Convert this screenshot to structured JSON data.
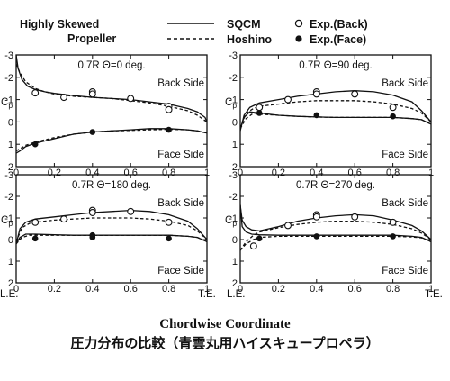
{
  "legend": {
    "subject_line1": "Highly Skewed",
    "subject_line2": "Propeller",
    "solid": "SQCM",
    "dashed": "Hoshino",
    "open_marker": "Exp.(Back)",
    "filled_marker": "Exp.(Face)"
  },
  "axes": {
    "ylabel_base": "C",
    "ylabel_sub": "p",
    "le_label": "L.E.",
    "te_label": "T.E."
  },
  "caption": {
    "line1": "Chordwise Coordinate",
    "line2": "圧力分布の比較（青雲丸用ハイスキュープロペラ）"
  },
  "chart_data": [
    {
      "type": "line",
      "label": "0.7R  Θ=0 deg.",
      "back_label": "Back Side",
      "face_label": "Face Side",
      "xlim": [
        0,
        1
      ],
      "ylim": [
        -3,
        2
      ],
      "xticks": [
        0,
        0.2,
        0.4,
        0.6,
        0.8,
        1
      ],
      "xtick_labels": [
        "0",
        "0.2",
        "0.4",
        "0.6",
        "0.8",
        "1"
      ],
      "yticks": [
        -3,
        -2,
        -1,
        0,
        1,
        2
      ],
      "ytick_labels": [
        "-3",
        "-2",
        "-1",
        "0",
        "1",
        "2"
      ],
      "sqcm_back": {
        "x": [
          0,
          0.01,
          0.03,
          0.06,
          0.1,
          0.15,
          0.2,
          0.3,
          0.4,
          0.5,
          0.6,
          0.7,
          0.8,
          0.9,
          0.95,
          0.99,
          1.0
        ],
        "y": [
          -3.0,
          -2.4,
          -1.9,
          -1.6,
          -1.45,
          -1.35,
          -1.28,
          -1.18,
          -1.1,
          -1.05,
          -1.0,
          -0.9,
          -0.8,
          -0.6,
          -0.45,
          -0.2,
          0
        ]
      },
      "sqcm_face": {
        "x": [
          0,
          0.02,
          0.05,
          0.1,
          0.15,
          0.2,
          0.3,
          0.4,
          0.5,
          0.6,
          0.7,
          0.8,
          0.9,
          0.95,
          1.0
        ],
        "y": [
          1.4,
          1.3,
          1.1,
          0.95,
          0.85,
          0.75,
          0.55,
          0.45,
          0.4,
          0.35,
          0.3,
          0.3,
          0.35,
          0.4,
          0.5
        ]
      },
      "hoshino_back": {
        "x": [
          0,
          0.02,
          0.05,
          0.1,
          0.15,
          0.2,
          0.3,
          0.4,
          0.5,
          0.6,
          0.7,
          0.8,
          0.9,
          0.95,
          1.0
        ],
        "y": [
          -2.6,
          -2.2,
          -1.8,
          -1.5,
          -1.35,
          -1.25,
          -1.15,
          -1.1,
          -1.05,
          -0.95,
          -0.85,
          -0.7,
          -0.5,
          -0.3,
          0
        ]
      },
      "hoshino_face": {
        "x": [
          0,
          0.02,
          0.05,
          0.1,
          0.15,
          0.2,
          0.3,
          0.4,
          0.5,
          0.6,
          0.7,
          0.8,
          0.9,
          0.95,
          1.0
        ],
        "y": [
          1.3,
          1.2,
          1.05,
          0.9,
          0.8,
          0.7,
          0.55,
          0.45,
          0.4,
          0.38,
          0.35,
          0.33,
          0.35,
          0.4,
          0.5
        ]
      },
      "exp_back": {
        "x": [
          0.1,
          0.25,
          0.4,
          0.4,
          0.6,
          0.8,
          0.8
        ],
        "y": [
          -1.3,
          -1.1,
          -1.35,
          -1.25,
          -1.05,
          -0.7,
          -0.55
        ]
      },
      "exp_face": {
        "x": [
          0.1,
          0.4,
          0.8
        ],
        "y": [
          1.0,
          0.45,
          0.35
        ]
      }
    },
    {
      "type": "line",
      "label": "0.7R  Θ=90 deg.",
      "back_label": "Back Side",
      "face_label": "Face Side",
      "xlim": [
        0,
        1
      ],
      "ylim": [
        -3,
        2
      ],
      "xticks": [
        0,
        0.2,
        0.4,
        0.6,
        0.8,
        1
      ],
      "xtick_labels": [
        "0",
        "0.2",
        "0.4",
        "0.6",
        "0.8",
        "1"
      ],
      "yticks": [
        -3,
        -2,
        -1,
        0,
        1,
        2
      ],
      "ytick_labels": [
        "-3",
        "-2",
        "-1",
        "0",
        "1",
        "2"
      ],
      "sqcm_back": {
        "x": [
          0,
          0.02,
          0.05,
          0.1,
          0.2,
          0.3,
          0.4,
          0.5,
          0.6,
          0.7,
          0.8,
          0.9,
          0.95,
          1.0
        ],
        "y": [
          0.4,
          -0.3,
          -0.65,
          -0.85,
          -1.0,
          -1.15,
          -1.25,
          -1.35,
          -1.4,
          -1.35,
          -1.2,
          -0.9,
          -0.5,
          0
        ]
      },
      "sqcm_face": {
        "x": [
          0,
          0.02,
          0.05,
          0.1,
          0.2,
          0.3,
          0.4,
          0.5,
          0.6,
          0.7,
          0.8,
          0.9,
          0.95,
          1.0
        ],
        "y": [
          0.3,
          -0.2,
          -0.45,
          -0.4,
          -0.3,
          -0.25,
          -0.22,
          -0.2,
          -0.2,
          -0.2,
          -0.2,
          -0.15,
          -0.1,
          0.1
        ]
      },
      "hoshino_back": {
        "x": [
          0,
          0.03,
          0.07,
          0.1,
          0.2,
          0.3,
          0.4,
          0.5,
          0.6,
          0.7,
          0.8,
          0.9,
          0.95,
          1.0
        ],
        "y": [
          0.3,
          -0.4,
          -0.6,
          -0.7,
          -0.8,
          -0.9,
          -0.95,
          -0.95,
          -0.95,
          -0.9,
          -0.8,
          -0.6,
          -0.4,
          0
        ]
      },
      "hoshino_face": {
        "x": [
          0,
          0.03,
          0.07,
          0.1,
          0.2,
          0.3,
          0.4,
          0.5,
          0.6,
          0.7,
          0.8,
          0.9,
          0.95,
          1.0
        ],
        "y": [
          0.3,
          -0.15,
          -0.4,
          -0.35,
          -0.3,
          -0.25,
          -0.22,
          -0.2,
          -0.2,
          -0.2,
          -0.2,
          -0.15,
          -0.1,
          0.1
        ]
      },
      "exp_back": {
        "x": [
          0.1,
          0.25,
          0.4,
          0.4,
          0.6,
          0.8
        ],
        "y": [
          -0.65,
          -1.0,
          -1.35,
          -1.25,
          -1.25,
          -0.65
        ]
      },
      "exp_face": {
        "x": [
          0.1,
          0.4,
          0.8
        ],
        "y": [
          -0.4,
          -0.3,
          -0.25
        ]
      }
    },
    {
      "type": "line",
      "label": "0.7R  Θ=180 deg.",
      "back_label": "Back Side",
      "face_label": "Face Side",
      "xlim": [
        0,
        1
      ],
      "ylim": [
        -3,
        2
      ],
      "xticks": [
        0,
        0.2,
        0.4,
        0.6,
        0.8,
        1
      ],
      "xtick_labels": [
        "0",
        "0.2",
        "0.4",
        "0.6",
        "0.8",
        "1"
      ],
      "yticks": [
        -3,
        -2,
        -1,
        0,
        1,
        2
      ],
      "ytick_labels": [
        "-3",
        "-2",
        "-1",
        "0",
        "1",
        "2"
      ],
      "sqcm_back": {
        "x": [
          0,
          0.02,
          0.05,
          0.1,
          0.2,
          0.3,
          0.4,
          0.5,
          0.6,
          0.7,
          0.8,
          0.9,
          0.95,
          1.0
        ],
        "y": [
          0.2,
          -0.5,
          -0.8,
          -0.95,
          -1.05,
          -1.15,
          -1.25,
          -1.3,
          -1.35,
          -1.3,
          -1.15,
          -0.85,
          -0.5,
          0
        ]
      },
      "sqcm_face": {
        "x": [
          0,
          0.02,
          0.05,
          0.1,
          0.2,
          0.3,
          0.4,
          0.5,
          0.6,
          0.7,
          0.8,
          0.9,
          0.95,
          1.0
        ],
        "y": [
          0.2,
          -0.1,
          -0.25,
          -0.25,
          -0.22,
          -0.2,
          -0.2,
          -0.2,
          -0.2,
          -0.2,
          -0.2,
          -0.15,
          -0.1,
          0.1
        ]
      },
      "hoshino_back": {
        "x": [
          0,
          0.03,
          0.07,
          0.1,
          0.2,
          0.3,
          0.4,
          0.5,
          0.6,
          0.7,
          0.8,
          0.9,
          0.95,
          1.0
        ],
        "y": [
          0.1,
          -0.55,
          -0.75,
          -0.8,
          -0.9,
          -0.95,
          -1.0,
          -1.0,
          -1.0,
          -0.95,
          -0.85,
          -0.65,
          -0.4,
          0
        ]
      },
      "hoshino_face": {
        "x": [
          0,
          0.03,
          0.07,
          0.1,
          0.2,
          0.3,
          0.4,
          0.5,
          0.6,
          0.7,
          0.8,
          0.9,
          0.95,
          1.0
        ],
        "y": [
          0.2,
          -0.1,
          -0.2,
          -0.2,
          -0.2,
          -0.2,
          -0.2,
          -0.2,
          -0.2,
          -0.2,
          -0.2,
          -0.15,
          -0.1,
          0.1
        ]
      },
      "exp_back": {
        "x": [
          0.1,
          0.25,
          0.4,
          0.4,
          0.6,
          0.8
        ],
        "y": [
          -0.8,
          -0.95,
          -1.35,
          -1.25,
          -1.3,
          -0.8
        ]
      },
      "exp_face": {
        "x": [
          0.1,
          0.4,
          0.4,
          0.8
        ],
        "y": [
          -0.05,
          -0.2,
          -0.1,
          -0.05
        ]
      }
    },
    {
      "type": "line",
      "label": "0.7R  Θ=270 deg.",
      "back_label": "Back Side",
      "face_label": "Face Side",
      "xlim": [
        0,
        1
      ],
      "ylim": [
        -3,
        2
      ],
      "xticks": [
        0,
        0.2,
        0.4,
        0.6,
        0.8,
        1
      ],
      "xtick_labels": [
        "0",
        "0.2",
        "0.4",
        "0.6",
        "0.8",
        "1"
      ],
      "yticks": [
        -3,
        -2,
        -1,
        0,
        1,
        2
      ],
      "ytick_labels": [
        "-3",
        "-2",
        "-1",
        "0",
        "1",
        "2"
      ],
      "sqcm_back": {
        "x": [
          0,
          0.01,
          0.03,
          0.06,
          0.1,
          0.2,
          0.3,
          0.4,
          0.5,
          0.6,
          0.7,
          0.8,
          0.9,
          0.95,
          1.0
        ],
        "y": [
          -1.6,
          -0.9,
          -0.6,
          -0.45,
          -0.4,
          -0.6,
          -0.85,
          -1.0,
          -1.1,
          -1.15,
          -1.1,
          -0.9,
          -0.65,
          -0.4,
          0
        ]
      },
      "sqcm_face": {
        "x": [
          0,
          0.01,
          0.03,
          0.06,
          0.1,
          0.2,
          0.3,
          0.4,
          0.5,
          0.6,
          0.7,
          0.8,
          0.9,
          0.95,
          1.0
        ],
        "y": [
          -1.6,
          -0.6,
          -0.35,
          -0.25,
          -0.22,
          -0.2,
          -0.2,
          -0.2,
          -0.2,
          -0.2,
          -0.2,
          -0.2,
          -0.15,
          -0.1,
          0.1
        ]
      },
      "hoshino_back": {
        "x": [
          0,
          0.03,
          0.07,
          0.1,
          0.2,
          0.3,
          0.4,
          0.5,
          0.6,
          0.7,
          0.8,
          0.9,
          0.95,
          1.0
        ],
        "y": [
          0.5,
          0.1,
          -0.2,
          -0.35,
          -0.55,
          -0.7,
          -0.8,
          -0.85,
          -0.85,
          -0.8,
          -0.7,
          -0.5,
          -0.3,
          0
        ]
      },
      "hoshino_face": {
        "x": [
          0,
          0.03,
          0.07,
          0.1,
          0.2,
          0.3,
          0.4,
          0.5,
          0.6,
          0.7,
          0.8,
          0.9,
          0.95,
          1.0
        ],
        "y": [
          0.5,
          0.2,
          0.0,
          -0.1,
          -0.15,
          -0.15,
          -0.15,
          -0.15,
          -0.15,
          -0.15,
          -0.15,
          -0.12,
          -0.08,
          0.1
        ]
      },
      "exp_back": {
        "x": [
          0.07,
          0.25,
          0.4,
          0.4,
          0.6,
          0.8
        ],
        "y": [
          0.3,
          -0.65,
          -1.15,
          -1.05,
          -1.05,
          -0.8
        ]
      },
      "exp_face": {
        "x": [
          0.1,
          0.4,
          0.8
        ],
        "y": [
          -0.05,
          -0.15,
          -0.15
        ]
      }
    }
  ]
}
